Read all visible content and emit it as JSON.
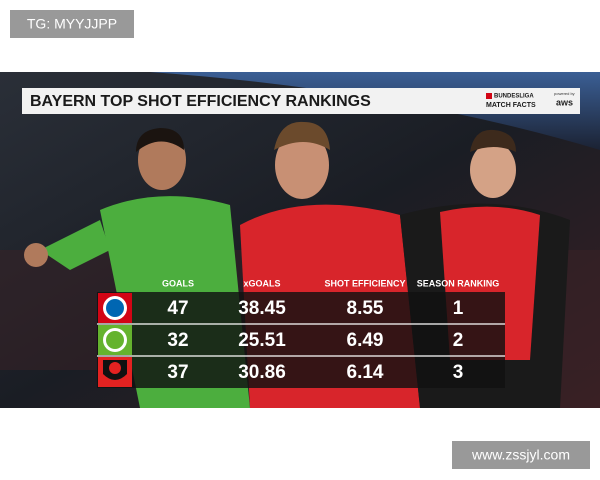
{
  "watermark_top": "TG: MYYJJPP",
  "watermark_bottom": "www.zssjyl.com",
  "graphic": {
    "title": "BAYERN TOP SHOT EFFICIENCY RANKINGS",
    "logo": {
      "line1": "BUNDESLIGA",
      "line2": "MATCH FACTS",
      "powered": "powered by",
      "brand": "aws"
    },
    "table": {
      "headers": [
        "GOALS",
        "xGOALS",
        "SHOT EFFICIENCY",
        "SEASON RANKING"
      ],
      "rows": [
        [
          "47",
          "38.45",
          "8.55",
          "1"
        ],
        [
          "32",
          "25.51",
          "6.49",
          "2"
        ],
        [
          "37",
          "30.86",
          "6.14",
          "3"
        ]
      ]
    }
  }
}
